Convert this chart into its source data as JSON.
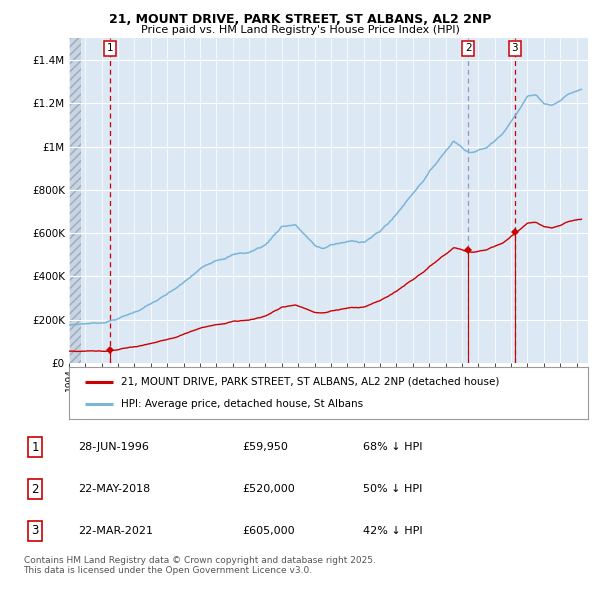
{
  "title_line1": "21, MOUNT DRIVE, PARK STREET, ST ALBANS, AL2 2NP",
  "title_line2": "Price paid vs. HM Land Registry's House Price Index (HPI)",
  "plot_bg_color": "#dce9f5",
  "hpi_color": "#7ab5d8",
  "price_color": "#cc0000",
  "ylim": [
    0,
    1500000
  ],
  "yticks": [
    0,
    200000,
    400000,
    600000,
    800000,
    1000000,
    1200000,
    1400000
  ],
  "ytick_labels": [
    "£0",
    "£200K",
    "£400K",
    "£600K",
    "£800K",
    "£1M",
    "£1.2M",
    "£1.4M"
  ],
  "sales": [
    {
      "label": "1",
      "date": "28-JUN-1996",
      "price": 59950,
      "x_year": 1996.49,
      "pct": "68%",
      "direction": "↓"
    },
    {
      "label": "2",
      "date": "22-MAY-2018",
      "price": 520000,
      "x_year": 2018.39,
      "pct": "50%",
      "direction": "↓"
    },
    {
      "label": "3",
      "date": "22-MAR-2021",
      "price": 605000,
      "x_year": 2021.22,
      "pct": "42%",
      "direction": "↓"
    }
  ],
  "legend_entry1": "21, MOUNT DRIVE, PARK STREET, ST ALBANS, AL2 2NP (detached house)",
  "legend_entry2": "HPI: Average price, detached house, St Albans",
  "footer": "Contains HM Land Registry data © Crown copyright and database right 2025.\nThis data is licensed under the Open Government Licence v3.0.",
  "xmin": 1994.0,
  "xmax": 2025.7
}
